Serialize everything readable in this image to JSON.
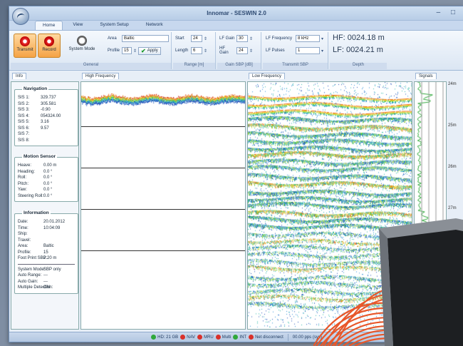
{
  "window": {
    "title": "Innomar - SESWIN 2.0",
    "controls": "– □"
  },
  "tabs": [
    "Home",
    "View",
    "System Setup",
    "Network"
  ],
  "ribbon": {
    "general": {
      "label": "General",
      "transmit": "Transmit",
      "record": "Record",
      "system_mode": "System Mode",
      "area_label": "Area",
      "area_value": "Baltic",
      "profile_label": "Profile",
      "profile_value": "15",
      "apply": "Apply"
    },
    "range": {
      "label": "Range [m]",
      "start_label": "Start",
      "start_value": "24",
      "length_label": "Length",
      "length_value": "6"
    },
    "gain": {
      "label": "Gain SBP [dB]",
      "lf_label": "LF Gain",
      "lf_value": "30",
      "hf_label": "HF Gain",
      "hf_value": "24"
    },
    "transmit_sbp": {
      "label": "Transmit SBP",
      "freq_label": "LF Frequency",
      "freq_value": "8 kHz",
      "pulses_label": "LF Pulses",
      "pulses_value": "1"
    },
    "depth": {
      "label": "Depth",
      "hf": "HF: 0024.18 m",
      "lf": "LF: 0024.21 m"
    }
  },
  "panes": {
    "info": "Info",
    "hf": "High Frequency",
    "lf": "Low Frequency",
    "signals": "Signals"
  },
  "navigation": {
    "title": "Navigation",
    "rows": [
      {
        "k": "SIS 1:",
        "v": "329.737"
      },
      {
        "k": "SIS 2:",
        "v": "305.581"
      },
      {
        "k": "SIS 3:",
        "v": "-0.90"
      },
      {
        "k": "SIS 4:",
        "v": "054324.00"
      },
      {
        "k": "SIS 5:",
        "v": "3.16"
      },
      {
        "k": "SIS 6:",
        "v": "9.57"
      },
      {
        "k": "SIS 7:",
        "v": ""
      },
      {
        "k": "SIS 8:",
        "v": ""
      }
    ]
  },
  "motion": {
    "title": "Motion Sensor",
    "rows": [
      {
        "k": "Heave:",
        "v": "0.00 m"
      },
      {
        "k": "Heading:",
        "v": "0.0 °"
      },
      {
        "k": "Roll:",
        "v": "0.0 °"
      },
      {
        "k": "Pitch:",
        "v": "0.0 °"
      },
      {
        "k": "Yaw:",
        "v": "0.0 °"
      },
      {
        "k": "Steering Roll:",
        "v": "0.0 °"
      }
    ]
  },
  "information": {
    "title": "Information",
    "rows": [
      {
        "k": "Date:",
        "v": "20.01.2012"
      },
      {
        "k": "Time:",
        "v": "10:04:09"
      },
      {
        "k": "Ship:",
        "v": ""
      },
      {
        "k": "Travel:",
        "v": ""
      },
      {
        "k": "Area:",
        "v": "Baltic"
      },
      {
        "k": "Profile:",
        "v": "15"
      },
      {
        "k": "Foot Print SBP:",
        "v": "2.20 m"
      }
    ],
    "rows2": [
      {
        "k": "System Mode:",
        "v": "SBP only"
      },
      {
        "k": "Auto Range:",
        "v": "---"
      },
      {
        "k": "Auto Gain:",
        "v": "---"
      },
      {
        "k": "Multiple Detection:",
        "v": "ON"
      }
    ]
  },
  "depth_scale": [
    "24m",
    "25m",
    "26m",
    "27m"
  ],
  "status": [
    {
      "label": "HD: 21 GB",
      "color": "#2fa83a"
    },
    {
      "label": "NAV",
      "color": "#d9302a"
    },
    {
      "label": "MRU",
      "color": "#d9302a"
    },
    {
      "label": "Multi",
      "color": "#d9302a"
    },
    {
      "label": "INT",
      "color": "#2fa83a"
    },
    {
      "label": "Net disconnect",
      "color": "#d9302a"
    }
  ],
  "status_rate": "00.00 pps (sys)"
}
